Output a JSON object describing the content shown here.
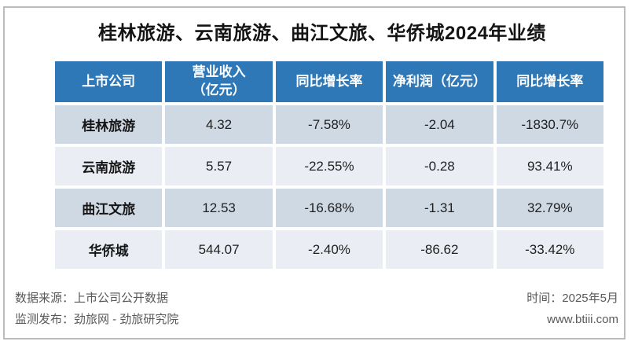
{
  "title": "桂林旅游、云南旅游、曲江文旅、华侨城2024年业绩",
  "table": {
    "header_lines": [
      [
        "上市公司"
      ],
      [
        "营业收入",
        "（亿元）"
      ],
      [
        "同比增长率"
      ],
      [
        "净利润（亿元）"
      ],
      [
        "同比增长率"
      ]
    ]
  },
  "chart_data": {
    "type": "table",
    "title": "桂林旅游、云南旅游、曲江文旅、华侨城2024年业绩",
    "columns": [
      "上市公司",
      "营业收入（亿元）",
      "同比增长率",
      "净利润（亿元）",
      "同比增长率"
    ],
    "rows": [
      [
        "桂林旅游",
        "4.32",
        "-7.58%",
        "-2.04",
        "-1830.7%"
      ],
      [
        "云南旅游",
        "5.57",
        "-22.55%",
        "-0.28",
        "93.41%"
      ],
      [
        "曲江文旅",
        "12.53",
        "-16.68%",
        "-1.31",
        "32.79%"
      ],
      [
        "华侨城",
        "544.07",
        "-2.40%",
        "-86.62",
        "-33.42%"
      ]
    ]
  },
  "footer": {
    "source": "数据来源：上市公司公开数据",
    "publisher": "监测发布：劲旅网 - 劲旅研究院",
    "time": "时间：2025年5月",
    "website": "www.btiii.com"
  },
  "colors": {
    "header_bg": "#2E78B8",
    "header_text": "#FFFFFF",
    "row_odd_bg": "#CFD9E4",
    "row_even_bg": "#EAEEF4",
    "body_text": "#1F1F1F",
    "footer_text": "#595959",
    "frame_border": "#BCBCBC"
  }
}
